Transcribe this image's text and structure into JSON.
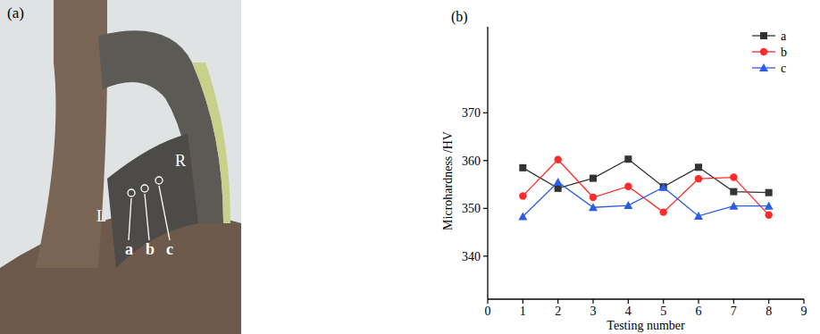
{
  "photo_panel": {
    "panel_label": "(a)",
    "side_labels": [
      "L",
      "R"
    ],
    "point_labels": [
      "a",
      "b",
      "c"
    ]
  },
  "chart_data": {
    "type": "line",
    "title": "(b)",
    "x_label": "Testing number",
    "y_label": "Microhardness /HV",
    "x": [
      1,
      2,
      3,
      4,
      5,
      6,
      7,
      8
    ],
    "series": [
      {
        "name": "a",
        "color": "#333333",
        "marker": "square",
        "values": [
          358.5,
          354.2,
          356.3,
          360.3,
          354.5,
          358.6,
          353.5,
          353.3
        ]
      },
      {
        "name": "b",
        "color": "#ff2a2a",
        "marker": "circle",
        "values": [
          352.6,
          360.2,
          352.3,
          354.6,
          349.2,
          356.2,
          356.5,
          348.6
        ]
      },
      {
        "name": "c",
        "color": "#2b5ce6",
        "marker": "triangle",
        "values": [
          348.3,
          355.5,
          350.2,
          350.6,
          354.4,
          348.4,
          350.5,
          350.5
        ]
      }
    ],
    "xlim": [
      0,
      9
    ],
    "xticks": [
      0,
      1,
      2,
      3,
      4,
      5,
      6,
      7,
      8,
      9
    ],
    "ylim": [
      331,
      388
    ],
    "yticks": [
      340,
      350,
      360,
      370
    ],
    "legend": "upper right",
    "grid": false
  }
}
